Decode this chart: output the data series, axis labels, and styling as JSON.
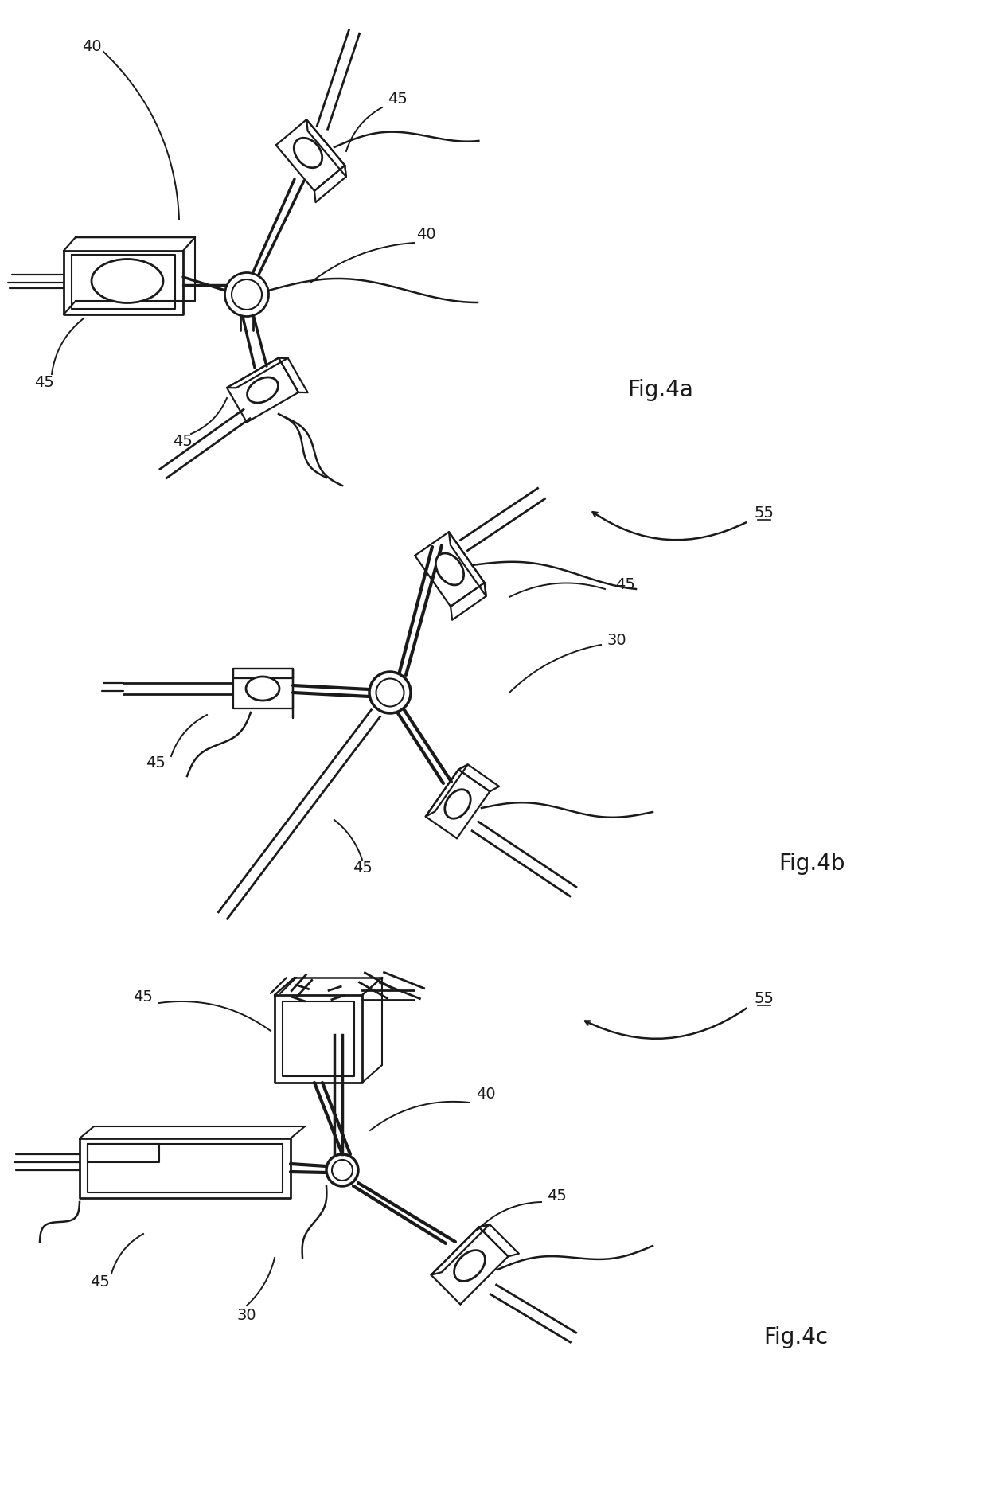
{
  "background_color": "#ffffff",
  "line_color": "#1a1a1a",
  "lw": 1.6,
  "fig_width": 12.4,
  "fig_height": 18.68,
  "font_size_annot": 14,
  "font_size_fig": 20,
  "labels": {
    "fig4a": "Fig.4a",
    "fig4b": "Fig.4b",
    "fig4c": "Fig.4c"
  }
}
